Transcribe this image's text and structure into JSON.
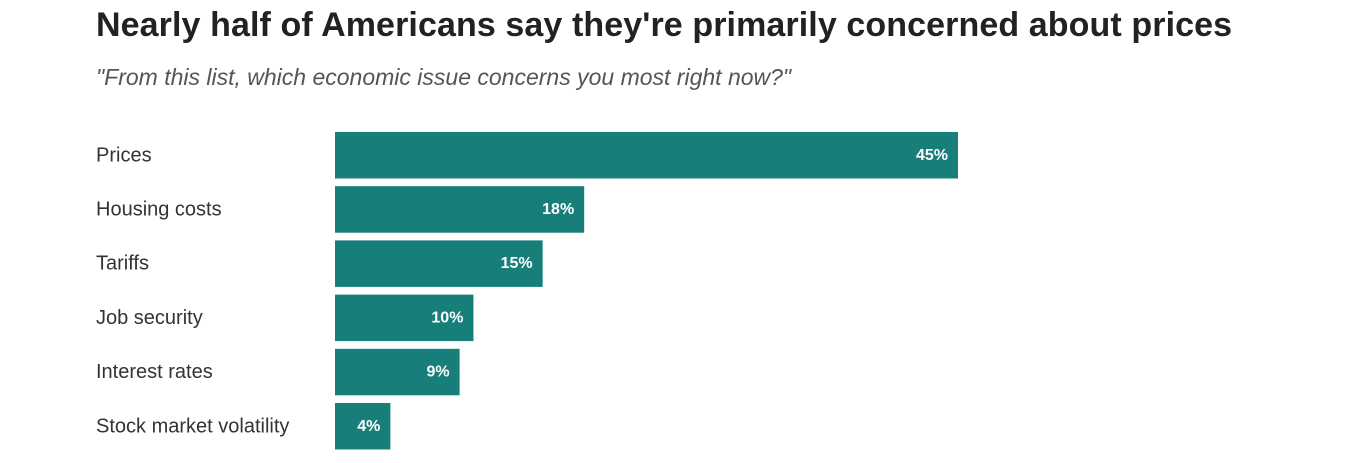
{
  "chart_data": {
    "type": "bar",
    "orientation": "horizontal",
    "title": "Nearly half of Americans say they're primarily concerned about prices",
    "subtitle": "\"From this list, which economic issue concerns you most right now?\"",
    "categories": [
      "Prices",
      "Housing costs",
      "Tariffs",
      "Job security",
      "Interest rates",
      "Stock market volatility"
    ],
    "values": [
      45,
      18,
      15,
      10,
      9,
      4
    ],
    "value_labels": [
      "45%",
      "18%",
      "15%",
      "10%",
      "9%",
      "4%"
    ],
    "xlim": [
      0,
      45
    ],
    "xlabel": "",
    "ylabel": "",
    "bar_color": "#177e7a"
  }
}
